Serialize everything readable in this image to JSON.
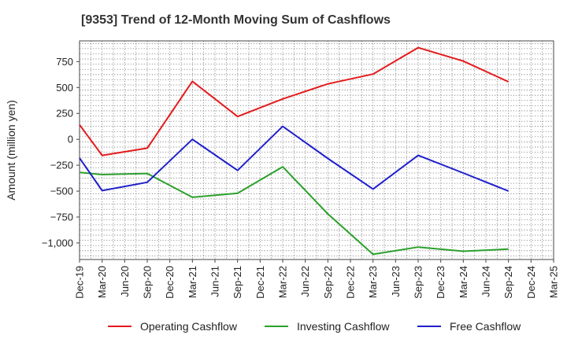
{
  "chart_data": {
    "type": "line",
    "title": "[9353]  Trend of 12-Month Moving Sum of Cashflows",
    "xlabel": "",
    "ylabel": "Amount (million yen)",
    "categories": [
      "Dec-19",
      "Mar-20",
      "Jun-20",
      "Sep-20",
      "Dec-20",
      "Mar-21",
      "Jun-21",
      "Sep-21",
      "Dec-21",
      "Mar-22",
      "Jun-22",
      "Sep-22",
      "Dec-22",
      "Mar-23",
      "Jun-23",
      "Sep-23",
      "Dec-23",
      "Mar-24",
      "Jun-24",
      "Sep-24",
      "Dec-24",
      "Mar-25"
    ],
    "yticks": [
      750,
      500,
      250,
      0,
      -250,
      -500,
      -750,
      -1000
    ],
    "ytick_labels": [
      "750",
      "500",
      "250",
      "0",
      "−250",
      "−500",
      "−750",
      "−1,000"
    ],
    "ylim": [
      -1160,
      950
    ],
    "grid": true,
    "legend_position": "bottom",
    "series": [
      {
        "name": "Operating Cashflow",
        "color": "#e41a1c",
        "values": [
          140,
          -155,
          null,
          -85,
          null,
          560,
          null,
          220,
          null,
          390,
          null,
          535,
          null,
          630,
          null,
          885,
          null,
          755,
          null,
          555,
          null,
          null
        ]
      },
      {
        "name": "Investing Cashflow",
        "color": "#2ca02c",
        "values": [
          -320,
          -340,
          null,
          -330,
          null,
          -560,
          null,
          -520,
          null,
          -265,
          null,
          -720,
          null,
          -1110,
          null,
          -1040,
          null,
          -1080,
          null,
          -1060,
          null,
          null
        ]
      },
      {
        "name": "Free Cashflow",
        "color": "#1f1fcc",
        "values": [
          -180,
          -495,
          null,
          -415,
          null,
          0,
          null,
          -300,
          null,
          125,
          null,
          -185,
          null,
          -480,
          null,
          -155,
          null,
          -325,
          null,
          -500,
          null,
          null
        ]
      }
    ]
  }
}
